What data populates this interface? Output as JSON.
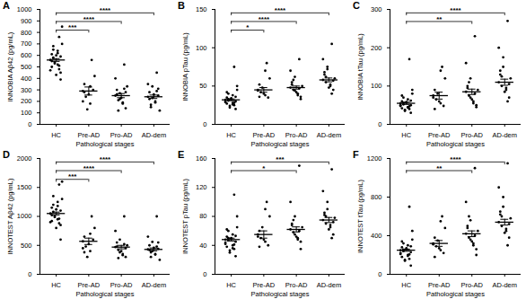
{
  "chart_data": [
    {
      "type": "scatter",
      "panel": "A",
      "ylabel": "INNOBIA Aβ42 (pg/mL)",
      "xlabel": "Pathological stages",
      "categories": [
        "HC",
        "Pre-AD",
        "Pro-AD",
        "AD-dem"
      ],
      "values": [
        [
          560,
          520,
          610,
          480,
          650,
          590,
          540,
          700,
          430,
          560,
          620,
          500,
          760,
          580,
          450,
          530,
          850,
          600,
          470,
          640,
          550,
          510,
          680,
          390
        ],
        [
          290,
          180,
          350,
          560,
          240,
          300,
          130,
          420,
          260,
          200,
          330,
          280
        ],
        [
          250,
          180,
          300,
          520,
          210,
          140,
          270,
          330,
          230,
          400,
          190,
          260,
          310,
          120,
          280,
          220
        ],
        [
          240,
          200,
          280,
          450,
          170,
          310,
          230,
          120,
          260,
          350,
          190,
          220,
          290,
          150,
          250,
          330
        ]
      ],
      "mean": [
        560,
        290,
        250,
        240
      ],
      "sem": [
        12,
        35,
        18,
        15
      ],
      "comparisons": [
        {
          "from": "HC",
          "to": "Pre-AD",
          "label": "***"
        },
        {
          "from": "HC",
          "to": "Pro-AD",
          "label": "****"
        },
        {
          "from": "HC",
          "to": "AD-dem",
          "label": "****"
        }
      ],
      "ylim": [
        0,
        1000
      ],
      "yticks": [
        0,
        100,
        200,
        300,
        400,
        500,
        600,
        700,
        800,
        900,
        1000
      ],
      "color": "#000000"
    },
    {
      "type": "scatter",
      "panel": "B",
      "ylabel": "INNOBIA pTau (pg/mL)",
      "xlabel": "Pathological stages",
      "categories": [
        "HC",
        "Pre-AD",
        "Pro-AD",
        "AD-dem"
      ],
      "values": [
        [
          32,
          28,
          35,
          25,
          40,
          30,
          22,
          45,
          33,
          29,
          38,
          27,
          75,
          31,
          36,
          24,
          50,
          34,
          30,
          26,
          42,
          28,
          33,
          20
        ],
        [
          45,
          38,
          52,
          80,
          42,
          35,
          48,
          60,
          40,
          44,
          70,
          36
        ],
        [
          48,
          40,
          55,
          85,
          45,
          36,
          62,
          50,
          42,
          70,
          38,
          52,
          47,
          58,
          33,
          44
        ],
        [
          58,
          50,
          65,
          105,
          55,
          45,
          72,
          60,
          48,
          85,
          52,
          68,
          40,
          62,
          57,
          75
        ]
      ],
      "mean": [
        32,
        45,
        48,
        58
      ],
      "sem": [
        1.2,
        3,
        2,
        2.5
      ],
      "comparisons": [
        {
          "from": "HC",
          "to": "Pre-AD",
          "label": "*"
        },
        {
          "from": "HC",
          "to": "Pro-AD",
          "label": "****"
        },
        {
          "from": "HC",
          "to": "AD-dem",
          "label": "****"
        }
      ],
      "ylim": [
        0,
        150
      ],
      "yticks": [
        0,
        50,
        100,
        150
      ],
      "color": "#000000"
    },
    {
      "type": "scatter",
      "panel": "C",
      "ylabel": "INNOBIA tTau (pg/mL)",
      "xlabel": "Pathological stages",
      "categories": [
        "HC",
        "Pre-AD",
        "Pro-AD",
        "AD-dem"
      ],
      "values": [
        [
          55,
          45,
          60,
          40,
          70,
          50,
          35,
          80,
          58,
          48,
          65,
          42,
          170,
          52,
          62,
          38,
          90,
          57,
          50,
          44,
          75,
          47,
          56,
          30
        ],
        [
          75,
          55,
          90,
          150,
          65,
          48,
          80,
          120,
          60,
          70,
          140,
          40
        ],
        [
          85,
          60,
          100,
          230,
          75,
          50,
          120,
          90,
          65,
          160,
          55,
          95,
          80,
          110,
          45,
          70
        ],
        [
          110,
          90,
          130,
          270,
          100,
          70,
          150,
          120,
          85,
          200,
          95,
          140,
          60,
          125,
          105,
          175
        ]
      ],
      "mean": [
        55,
        75,
        85,
        110
      ],
      "sem": [
        3,
        9,
        7,
        8
      ],
      "comparisons": [
        {
          "from": "HC",
          "to": "Pro-AD",
          "label": "**"
        },
        {
          "from": "HC",
          "to": "AD-dem",
          "label": "****"
        }
      ],
      "ylim": [
        0,
        300
      ],
      "yticks": [
        0,
        100,
        200,
        300
      ],
      "color": "#000000"
    },
    {
      "type": "scatter",
      "panel": "D",
      "ylabel": "INNOTEST Aβ42 (pg/mL)",
      "xlabel": "Pathological stages",
      "categories": [
        "HC",
        "Pre-AD",
        "Pro-AD",
        "AD-dem"
      ],
      "values": [
        [
          1050,
          950,
          1150,
          880,
          1200,
          1100,
          1000,
          1300,
          800,
          1050,
          1180,
          920,
          1550,
          1080,
          850,
          990,
          1600,
          1120,
          900,
          1250,
          1020,
          960,
          1350,
          600
        ],
        [
          570,
          400,
          650,
          1000,
          480,
          600,
          300,
          800,
          520,
          450,
          700,
          380
        ],
        [
          470,
          350,
          550,
          1000,
          420,
          300,
          600,
          500,
          400,
          750,
          330,
          480,
          520,
          280,
          450,
          380
        ],
        [
          430,
          350,
          500,
          1000,
          380,
          550,
          400,
          250,
          460,
          650,
          340,
          420,
          480,
          300,
          440,
          560
        ]
      ],
      "mean": [
        1050,
        570,
        470,
        430
      ],
      "sem": [
        25,
        55,
        30,
        25
      ],
      "comparisons": [
        {
          "from": "HC",
          "to": "Pre-AD",
          "label": "***"
        },
        {
          "from": "HC",
          "to": "Pro-AD",
          "label": "****"
        },
        {
          "from": "HC",
          "to": "AD-dem",
          "label": "****"
        }
      ],
      "ylim": [
        0,
        2000
      ],
      "yticks": [
        0,
        500,
        1000,
        1500,
        2000
      ],
      "color": "#000000"
    },
    {
      "type": "scatter",
      "panel": "E",
      "ylabel": "INNOTEST pTau (pg/mL)",
      "xlabel": "Pathological stages",
      "categories": [
        "HC",
        "Pre-AD",
        "Pro-AD",
        "AD-dem"
      ],
      "values": [
        [
          48,
          40,
          52,
          35,
          60,
          45,
          30,
          65,
          50,
          42,
          55,
          38,
          110,
          47,
          53,
          33,
          80,
          49,
          44,
          36,
          62,
          41,
          50,
          25
        ],
        [
          55,
          45,
          60,
          100,
          50,
          40,
          65,
          80,
          48,
          52,
          90,
          38
        ],
        [
          62,
          50,
          70,
          150,
          58,
          45,
          80,
          65,
          52,
          100,
          48,
          68,
          60,
          75,
          35,
          55
        ],
        [
          75,
          65,
          82,
          145,
          70,
          55,
          90,
          78,
          62,
          115,
          68,
          85,
          50,
          80,
          72,
          100
        ]
      ],
      "mean": [
        48,
        55,
        62,
        75
      ],
      "sem": [
        2,
        5,
        3.5,
        3.5
      ],
      "comparisons": [
        {
          "from": "HC",
          "to": "Pro-AD",
          "label": "*"
        },
        {
          "from": "HC",
          "to": "AD-dem",
          "label": "***"
        }
      ],
      "ylim": [
        0,
        160
      ],
      "yticks": [
        0,
        40,
        80,
        120,
        160
      ],
      "color": "#000000"
    },
    {
      "type": "scatter",
      "panel": "F",
      "ylabel": "INNOTEST tTau (pg/mL)",
      "xlabel": "Pathological stages",
      "categories": [
        "HC",
        "Pre-AD",
        "Pro-AD",
        "AD-dem"
      ],
      "values": [
        [
          250,
          200,
          280,
          160,
          320,
          230,
          140,
          360,
          260,
          210,
          300,
          180,
          700,
          240,
          290,
          150,
          450,
          270,
          220,
          190,
          340,
          205,
          255,
          90
        ],
        [
          320,
          250,
          380,
          600,
          290,
          220,
          350,
          480,
          270,
          310,
          550,
          180
        ],
        [
          420,
          320,
          480,
          1100,
          380,
          260,
          560,
          450,
          340,
          750,
          300,
          500,
          400,
          600,
          200,
          360
        ],
        [
          540,
          450,
          620,
          1150,
          500,
          380,
          700,
          580,
          430,
          900,
          470,
          650,
          300,
          600,
          520,
          800
        ]
      ],
      "mean": [
        250,
        320,
        420,
        540
      ],
      "sem": [
        12,
        30,
        30,
        30
      ],
      "comparisons": [
        {
          "from": "HC",
          "to": "Pro-AD",
          "label": "**"
        },
        {
          "from": "HC",
          "to": "AD-dem",
          "label": "****"
        }
      ],
      "ylim": [
        0,
        1200
      ],
      "yticks": [
        0,
        400,
        800,
        1200
      ],
      "color": "#000000"
    }
  ]
}
